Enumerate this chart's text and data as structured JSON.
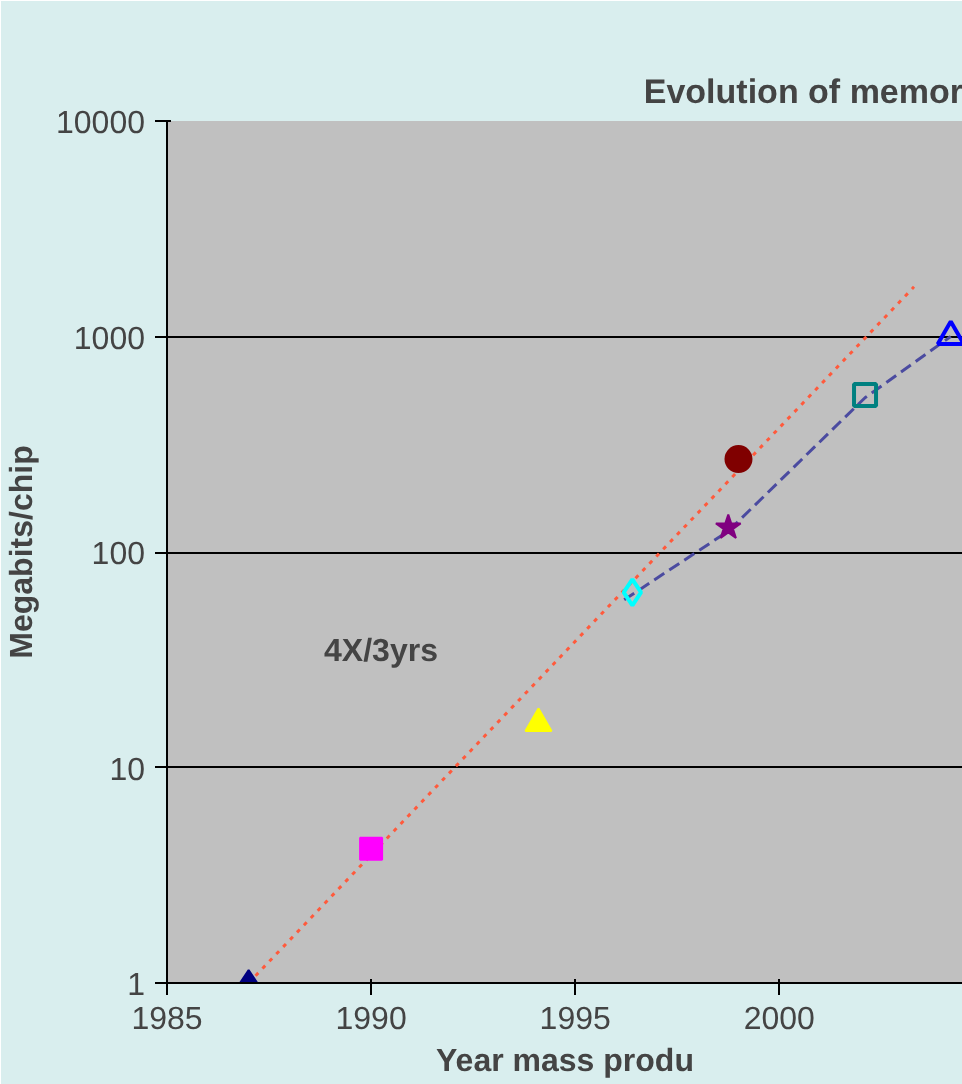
{
  "chart_data": {
    "type": "scatter",
    "title": "Evolution of memor",
    "xlabel": "Year mass produ",
    "ylabel": "Megabits/chip",
    "log": "y",
    "grid": "y",
    "xlim": [
      1985,
      2004.5
    ],
    "xticks": [
      1985,
      1990,
      1995,
      2000
    ],
    "ylim": [
      1,
      10000
    ],
    "yticks": [
      1,
      10,
      100,
      1000,
      10000
    ],
    "annotations": [
      "4X/3yrs"
    ],
    "series": [
      {
        "type": "line",
        "line_style": "dotted",
        "color": "#ff5a3c",
        "x": [
          1987,
          2003.3
        ],
        "values": [
          1,
          1700
        ]
      },
      {
        "type": "line",
        "line_style": "dashed",
        "color": "#4b4ba0",
        "x": [
          1996.2,
          1998.75,
          2002.1,
          2004.2
        ],
        "values": [
          60,
          125,
          520,
          1000
        ]
      },
      {
        "marker": "diamond",
        "color": "#000080",
        "x": [
          1987
        ],
        "values": [
          1
        ]
      },
      {
        "marker": "square",
        "color": "#ff00ff",
        "x": [
          1990
        ],
        "values": [
          4.2
        ]
      },
      {
        "marker": "triangle",
        "color": "#ffff00",
        "x": [
          1994.1
        ],
        "values": [
          16
        ]
      },
      {
        "marker": "diamond_open",
        "color": "#00ffff",
        "x": [
          1996.4
        ],
        "values": [
          65
        ]
      },
      {
        "marker": "star",
        "color": "#800080",
        "x": [
          1998.75
        ],
        "values": [
          130
        ]
      },
      {
        "marker": "circle",
        "color": "#800000",
        "x": [
          1999
        ],
        "values": [
          270
        ]
      },
      {
        "marker": "square_open",
        "color": "#008080",
        "x": [
          2002.1
        ],
        "values": [
          535
        ]
      },
      {
        "marker": "triangle_open",
        "color": "#0000ff",
        "x": [
          2004.2
        ],
        "values": [
          1000
        ]
      }
    ]
  }
}
